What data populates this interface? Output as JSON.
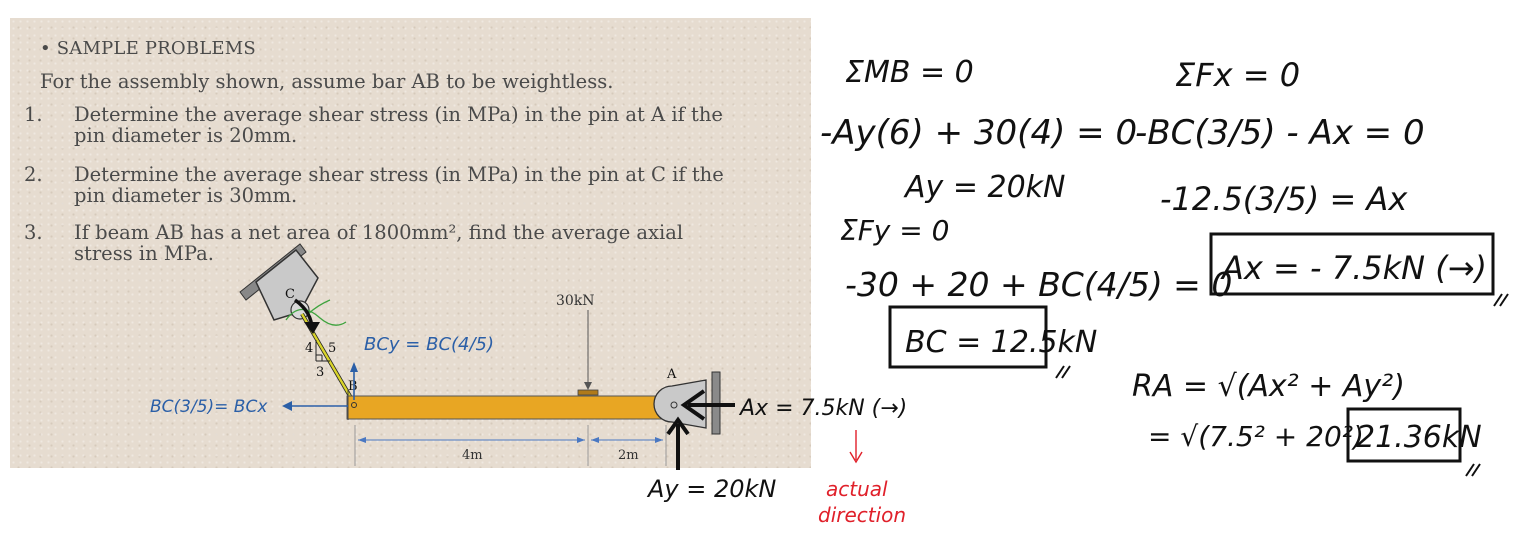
{
  "slide": {
    "heading": "• SAMPLE PROBLEMS",
    "intro": "For the assembly shown, assume bar AB to be weightless.",
    "problems": [
      {
        "num": "1.",
        "line1": "Determine the average shear stress (in MPa) in the pin at A if the",
        "line2": "pin diameter is 20mm."
      },
      {
        "num": "2.",
        "line1": "Determine the average shear stress (in MPa) in the pin at C if the",
        "line2": "pin diameter is 30mm."
      },
      {
        "num": "3.",
        "line1": "If beam AB has a net area of 1800mm², find the average axial",
        "line2": "stress in MPa."
      }
    ]
  },
  "diagram": {
    "label_c": "C",
    "label_b": "B",
    "label_a": "A",
    "load_label": "30kN",
    "dim_4m": "4m",
    "dim_2m": "2m",
    "tri_4": "4",
    "tri_5": "5",
    "tri_3": "3",
    "bcy_label": "BCy = BC(4/5)",
    "bcx_label": "BC(3/5)= BCx",
    "ax_label": "Ax = 7.5kN (→)",
    "ay_label": "Ay = 20kN",
    "actual_label_1": "actual",
    "actual_label_2": "direction",
    "colors": {
      "beam": "#e8a623",
      "handwriting": "#111111",
      "blue": "#2b5fa7",
      "red": "#e0202a",
      "green": "#3ea33e",
      "member": "#d9d42a"
    }
  },
  "solution": {
    "sum_mb": "ΣMB = 0",
    "moment_eq": "-Ay(6) + 30(4) = 0",
    "ay_result": "Ay = 20kN",
    "sum_fy": "ΣFy = 0",
    "fy_eq": "-30 + 20 + BC(4/5) = 0",
    "bc_result": "BC = 12.5kN",
    "sum_fx": "ΣFx = 0",
    "fx_eq": "-BC(3/5) - Ax = 0",
    "fx_sub": "-12.5(3/5) = Ax",
    "ax_result": "Ax = - 7.5kN (→)",
    "ra_eq": "RA = √(Ax² + Ay²)",
    "ra_sub": "= √(7.5² + 20²)",
    "ra_result": "21.36kN"
  }
}
